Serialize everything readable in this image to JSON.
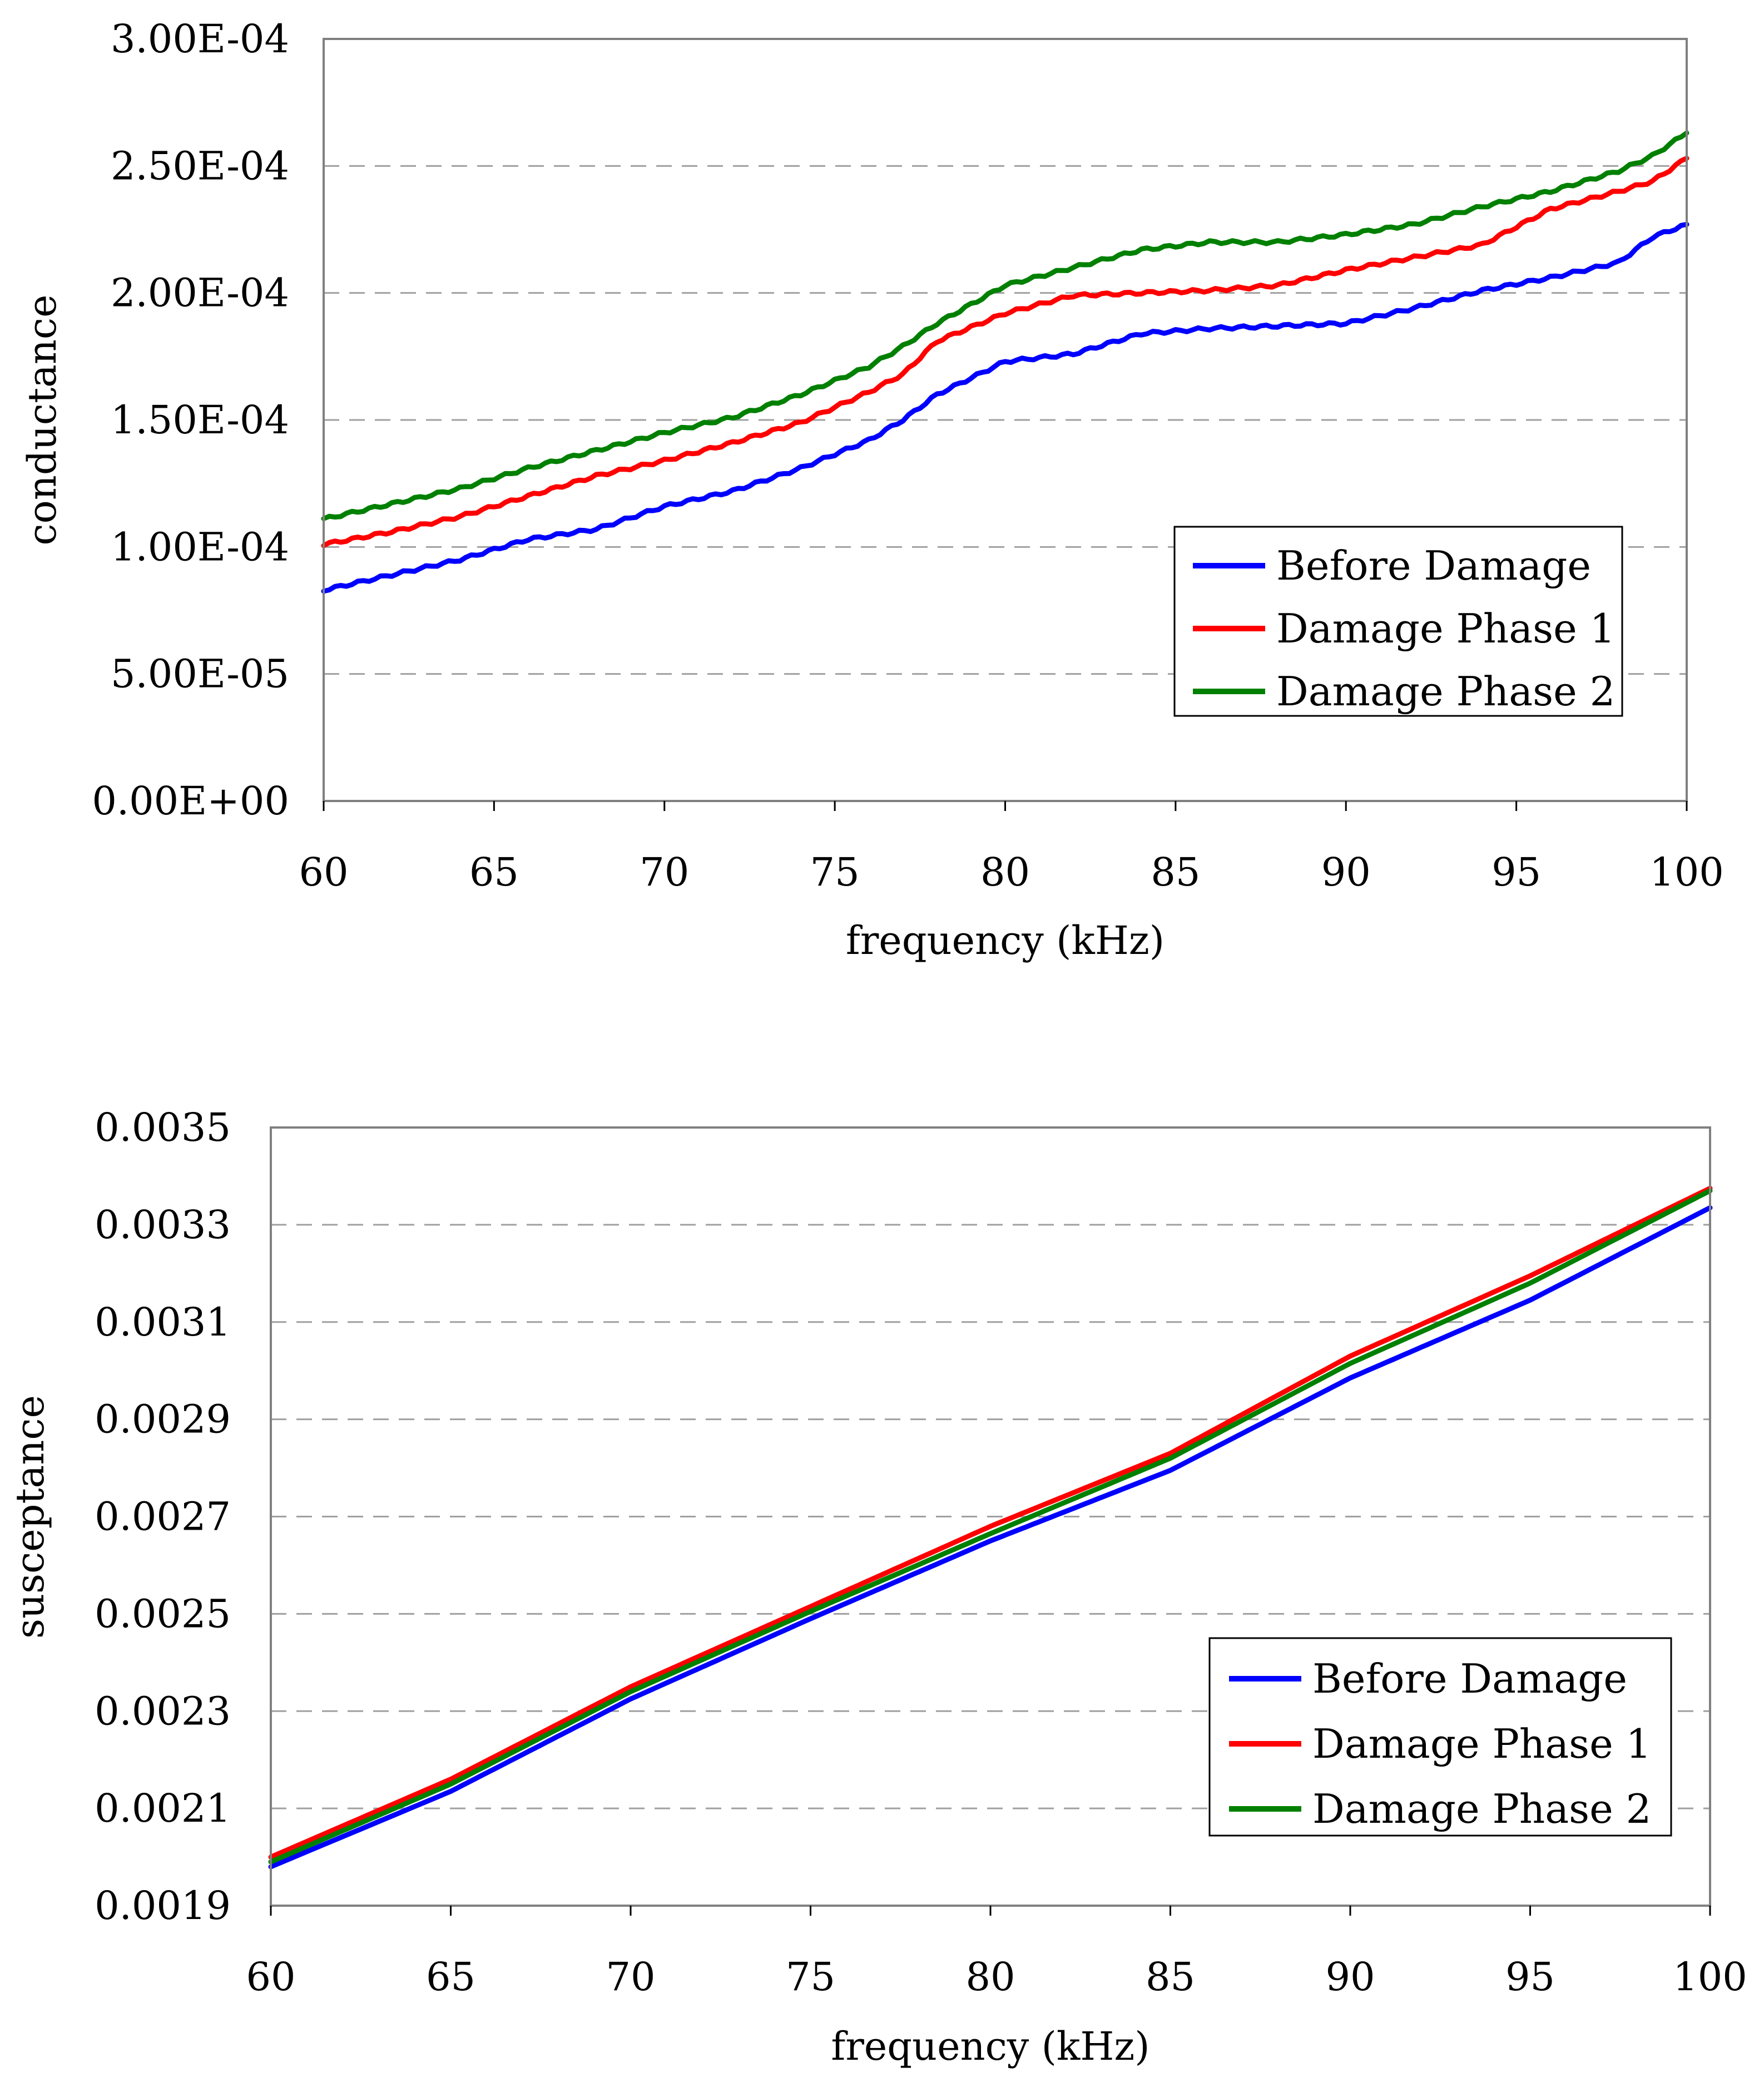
{
  "chart_data": [
    {
      "type": "line",
      "title": "",
      "xlabel": "frequency (kHz)",
      "ylabel": "conductance",
      "xlim": [
        60,
        100
      ],
      "ylim": [
        0,
        0.0003
      ],
      "grid": "horizontal dashed",
      "legend_position": "bottom-right",
      "x_ticks": [
        "60",
        "65",
        "70",
        "75",
        "80",
        "85",
        "90",
        "95",
        "100"
      ],
      "y_ticks": [
        "0.00E+00",
        "5.00E-05",
        "1.00E-04",
        "1.50E-04",
        "2.00E-04",
        "2.50E-04",
        "3.00E-04"
      ],
      "x": [
        60,
        62,
        64,
        66,
        68,
        70,
        72,
        74,
        76,
        77,
        78,
        80,
        82,
        84,
        86,
        88,
        90,
        92,
        94,
        96,
        98,
        99,
        100
      ],
      "series": [
        {
          "name": "Before Damage",
          "color": "#0000ff",
          "values": [
            8.3e-05,
            8.9e-05,
            9.5e-05,
            0.000103,
            0.000107,
            0.000116,
            0.000122,
            0.000131,
            0.000142,
            0.00015,
            0.00016,
            0.000173,
            0.000176,
            0.000184,
            0.000186,
            0.000187,
            0.000188,
            0.000194,
            0.000201,
            0.000206,
            0.000212,
            0.000222,
            0.000227
          ]
        },
        {
          "name": "Damage Phase 1",
          "color": "#ff0000",
          "values": [
            0.000101,
            0.000106,
            0.000112,
            0.00012,
            0.000128,
            0.000134,
            0.000141,
            0.000149,
            0.000161,
            0.000168,
            0.000181,
            0.000192,
            0.000199,
            0.0002,
            0.000201,
            0.000203,
            0.000209,
            0.000214,
            0.000219,
            0.000233,
            0.00024,
            0.000244,
            0.000253
          ]
        },
        {
          "name": "Damage Phase 2",
          "color": "#008000",
          "values": [
            0.000111,
            0.000117,
            0.000123,
            0.000131,
            0.000138,
            0.000145,
            0.000151,
            0.00016,
            0.000171,
            0.000179,
            0.000188,
            0.000203,
            0.00021,
            0.000217,
            0.00022,
            0.00022,
            0.000223,
            0.000227,
            0.000234,
            0.00024,
            0.000248,
            0.000254,
            0.000263
          ]
        }
      ]
    },
    {
      "type": "line",
      "title": "",
      "xlabel": "frequency (kHz)",
      "ylabel": "susceptance",
      "xlim": [
        60,
        100
      ],
      "ylim": [
        0.0019,
        0.0035
      ],
      "grid": "horizontal dashed",
      "legend_position": "bottom-right",
      "x_ticks": [
        "60",
        "65",
        "70",
        "75",
        "80",
        "85",
        "90",
        "95",
        "100"
      ],
      "y_ticks": [
        "0.0019",
        "0.0021",
        "0.0023",
        "0.0025",
        "0.0027",
        "0.0029",
        "0.0031",
        "0.0033",
        "0.0035"
      ],
      "x": [
        60,
        65,
        70,
        75,
        80,
        85,
        90,
        95,
        100
      ],
      "series": [
        {
          "name": "Before Damage",
          "color": "#0000ff",
          "values": [
            0.00198,
            0.002135,
            0.002325,
            0.00249,
            0.00265,
            0.002795,
            0.002985,
            0.003145,
            0.003335
          ]
        },
        {
          "name": "Damage Phase 1",
          "color": "#ff0000",
          "values": [
            0.002,
            0.00216,
            0.00235,
            0.002515,
            0.00268,
            0.00283,
            0.00303,
            0.003195,
            0.003375
          ]
        },
        {
          "name": "Damage Phase 2",
          "color": "#008000",
          "values": [
            0.00199,
            0.00215,
            0.00234,
            0.002505,
            0.002665,
            0.00282,
            0.003015,
            0.00318,
            0.00337
          ]
        }
      ]
    }
  ]
}
